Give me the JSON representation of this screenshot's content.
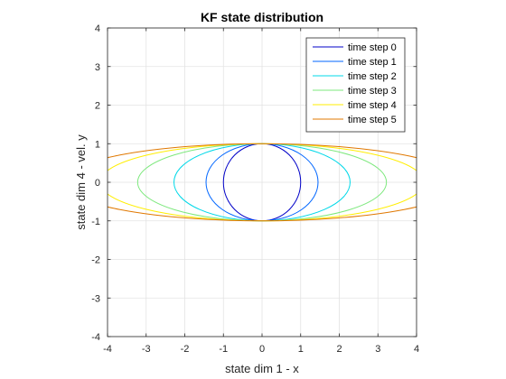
{
  "chart_data": {
    "type": "line",
    "title": "KF state distribution",
    "xlabel": "state dim 1 - x",
    "ylabel": "state dim 4 - vel. y",
    "xlim": [
      -4,
      4
    ],
    "ylim": [
      -4,
      4
    ],
    "xticks": [
      "-4",
      "-3",
      "-2",
      "-1",
      "0",
      "1",
      "2",
      "3",
      "4"
    ],
    "yticks": [
      "-4",
      "-3",
      "-2",
      "-1",
      "0",
      "1",
      "2",
      "3",
      "4"
    ],
    "grid": true,
    "legend_position": "top-right",
    "series": [
      {
        "name": "time step 0",
        "shape": "ellipse",
        "center": [
          0,
          0
        ],
        "x_semi_axis": 1.0,
        "y_semi_axis": 1.0,
        "color": "#0000c8"
      },
      {
        "name": "time step 1",
        "shape": "ellipse",
        "center": [
          0,
          0
        ],
        "x_semi_axis": 1.45,
        "y_semi_axis": 1.0,
        "color": "#0066ff"
      },
      {
        "name": "time step 2",
        "shape": "ellipse",
        "center": [
          0,
          0
        ],
        "x_semi_axis": 2.28,
        "y_semi_axis": 1.0,
        "color": "#00d8e8"
      },
      {
        "name": "time step 3",
        "shape": "ellipse",
        "center": [
          0,
          0
        ],
        "x_semi_axis": 3.22,
        "y_semi_axis": 1.0,
        "color": "#7de87d"
      },
      {
        "name": "time step 4",
        "shape": "ellipse",
        "center": [
          0,
          0
        ],
        "x_semi_axis": 4.2,
        "y_semi_axis": 1.0,
        "color": "#ffee00"
      },
      {
        "name": "time step 5",
        "shape": "ellipse",
        "center": [
          0,
          0
        ],
        "x_semi_axis": 5.2,
        "y_semi_axis": 1.0,
        "color": "#e07800"
      }
    ]
  }
}
